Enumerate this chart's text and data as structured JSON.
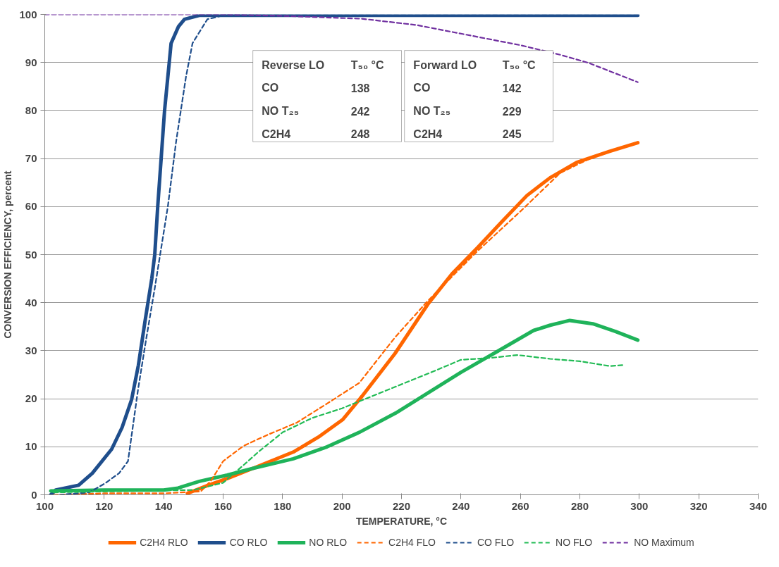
{
  "chart_data": {
    "type": "line",
    "xlabel": "TEMPERATURE, °C",
    "ylabel": "CONVERSION EFFICIENCY, percent",
    "xlim": [
      100,
      340
    ],
    "xticks": [
      100,
      120,
      140,
      160,
      180,
      200,
      220,
      240,
      260,
      280,
      300,
      320,
      340
    ],
    "ylim": [
      0,
      100
    ],
    "yticks": [
      0,
      10,
      20,
      30,
      40,
      50,
      60,
      70,
      80,
      90,
      100
    ],
    "grid": "y",
    "legend": "bottom",
    "marker": "none",
    "annotations": [
      "Reverse LO",
      "T₅₀ °C",
      "CO",
      "138",
      "NO T₂₅",
      "242",
      "C2H4",
      "248",
      "Forward LO",
      "T₅₀ °C",
      "CO",
      "142",
      "NO T₂₅",
      "229",
      "C2H4",
      "245"
    ],
    "series": [
      {
        "name": "C2H4 RLO",
        "color": "#ff6600",
        "line_style": "solid",
        "x": [
          148,
          155,
          161.4,
          170,
          183.6,
          192,
          200.3,
          206.7,
          217.8,
          228.9,
          237,
          245.5,
          254,
          262.2,
          270,
          278.9,
          290,
          299.5
        ],
        "values": [
          0.3,
          2,
          3.4,
          5.5,
          8.9,
          12,
          15.7,
          20.5,
          29.4,
          39.7,
          46,
          51.4,
          57,
          62.3,
          66,
          69.2,
          71.5,
          73.3
        ]
      },
      {
        "name": "CO RLO",
        "color": "#1f4e8c",
        "line_style": "solid",
        "x": [
          102,
          103.7,
          111.4,
          116,
          122.5,
          126,
          129.2,
          131.5,
          133.7,
          136,
          137,
          138,
          140.3,
          142.5,
          145,
          147,
          152,
          160,
          200,
          250,
          299.5
        ],
        "values": [
          0,
          1,
          2,
          4.5,
          9.5,
          14,
          19.8,
          27,
          36,
          45,
          50,
          60,
          80,
          94,
          97.5,
          99,
          99.8,
          99.8,
          99.8,
          99.8,
          99.8
        ]
      },
      {
        "name": "NO RLO",
        "color": "#1fb35a",
        "line_style": "solid",
        "x": [
          102,
          120,
          140,
          144.8,
          152,
          161.4,
          170,
          183.6,
          195,
          205.8,
          218,
          228.9,
          240,
          251,
          264.4,
          270,
          276.6,
          284.4,
          292,
          299.5
        ],
        "values": [
          0.8,
          1,
          1,
          1.4,
          2.8,
          4.1,
          5.5,
          7.5,
          10,
          13,
          17,
          21.2,
          25.5,
          29.4,
          34.2,
          35.3,
          36.3,
          35.6,
          34,
          32.2
        ]
      },
      {
        "name": "C2H4 FLO",
        "color": "#ff6600",
        "line_style": "dashed",
        "x": [
          103,
          120,
          140,
          152.5,
          156,
          160,
          166.9,
          175,
          184.7,
          195,
          205.8,
          218,
          228.9,
          245.5,
          260,
          273.4,
          285,
          299.5
        ],
        "values": [
          0,
          0.3,
          0.3,
          0.7,
          3,
          7,
          10.2,
          12.5,
          15,
          19,
          23.3,
          32.9,
          40.4,
          50.7,
          59,
          67,
          70.5,
          73.3
        ]
      },
      {
        "name": "CO FLO",
        "color": "#1f4e8c",
        "line_style": "dashed",
        "x": [
          105,
          115,
          120.3,
          125,
          128,
          131.4,
          134,
          137,
          141.4,
          144.2,
          147.5,
          149.7,
          154.7,
          160,
          200,
          250,
          299.5
        ],
        "values": [
          0,
          0.5,
          2.4,
          4.5,
          7,
          22,
          32,
          43,
          60,
          73.6,
          87,
          94,
          99,
          99.8,
          99.8,
          99.8,
          99.8
        ]
      },
      {
        "name": "NO FLO",
        "color": "#22bb55",
        "line_style": "dashed",
        "x": [
          103,
          130,
          150,
          160,
          166.9,
          172,
          180,
          190,
          200,
          210,
          220,
          230,
          240,
          250,
          259,
          270,
          280,
          290,
          294.4
        ],
        "values": [
          0.5,
          0.8,
          1,
          2.5,
          6.2,
          9,
          13,
          16,
          18,
          20.5,
          23,
          25.5,
          28.1,
          28.5,
          29.1,
          28.3,
          27.8,
          26.8,
          27
        ]
      },
      {
        "name": "NO Maximum",
        "color": "#7030a0",
        "line_style": "dashed",
        "x": [
          100,
          130,
          160,
          180,
          206.7,
          225,
          240,
          260,
          273.4,
          283,
          299.5
        ],
        "values": [
          100,
          100,
          100,
          99.7,
          99.1,
          97.8,
          96,
          93.6,
          91.6,
          89.9,
          85.9
        ]
      }
    ]
  }
}
